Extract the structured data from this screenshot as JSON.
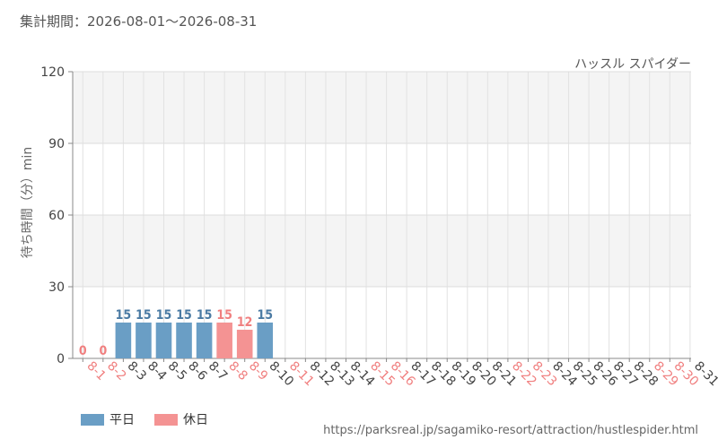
{
  "header": {
    "period": "集計期間：2026-08-01～2026-08-31",
    "attraction": "ハッスル スパイダー"
  },
  "legend": {
    "weekday": "平日",
    "holiday": "休日"
  },
  "source_url": "https://parksreal.jp/sagamiko-resort/attraction/hustlespider.html",
  "colors": {
    "weekday": "#6a9ec5",
    "holiday": "#f49393",
    "weekday_text": "#4a7aa3",
    "holiday_text": "#f07f7f"
  },
  "chart_data": {
    "type": "bar",
    "ylabel": "待ち時間（分）min",
    "ylim": [
      0,
      120
    ],
    "yticks": [
      0,
      30,
      60,
      90,
      120
    ],
    "categories": [
      "8-1",
      "8-2",
      "8-3",
      "8-4",
      "8-5",
      "8-6",
      "8-7",
      "8-8",
      "8-9",
      "8-10",
      "8-11",
      "8-12",
      "8-13",
      "8-14",
      "8-15",
      "8-16",
      "8-17",
      "8-18",
      "8-19",
      "8-20",
      "8-21",
      "8-22",
      "8-23",
      "8-24",
      "8-25",
      "8-26",
      "8-27",
      "8-28",
      "8-29",
      "8-30",
      "8-31"
    ],
    "day_type": [
      "holiday",
      "holiday",
      "weekday",
      "weekday",
      "weekday",
      "weekday",
      "weekday",
      "holiday",
      "holiday",
      "weekday",
      "holiday",
      "weekday",
      "weekday",
      "weekday",
      "holiday",
      "holiday",
      "weekday",
      "weekday",
      "weekday",
      "weekday",
      "weekday",
      "holiday",
      "holiday",
      "weekday",
      "weekday",
      "weekday",
      "weekday",
      "weekday",
      "holiday",
      "holiday",
      "weekday"
    ],
    "values": [
      0,
      0,
      15,
      15,
      15,
      15,
      15,
      15,
      12,
      15,
      null,
      null,
      null,
      null,
      null,
      null,
      null,
      null,
      null,
      null,
      null,
      null,
      null,
      null,
      null,
      null,
      null,
      null,
      null,
      null,
      null
    ],
    "grid": true,
    "legend_position": "bottom-left"
  }
}
